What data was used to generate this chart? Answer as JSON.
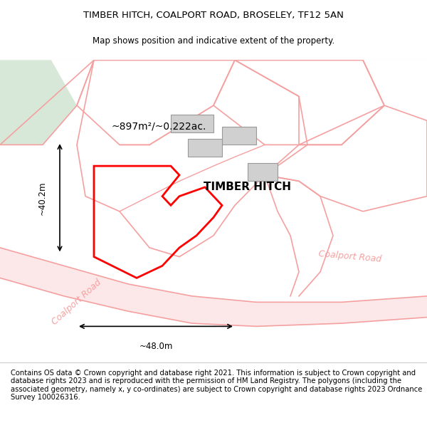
{
  "title_line1": "TIMBER HITCH, COALPORT ROAD, BROSELEY, TF12 5AN",
  "title_line2": "Map shows position and indicative extent of the property.",
  "footer_text": "Contains OS data © Crown copyright and database right 2021. This information is subject to Crown copyright and database rights 2023 and is reproduced with the permission of HM Land Registry. The polygons (including the associated geometry, namely x, y co-ordinates) are subject to Crown copyright and database rights 2023 Ordnance Survey 100026316.",
  "property_label": "TIMBER HITCH",
  "area_label": "~897m²/~0.222ac.",
  "dim_horiz": "~48.0m",
  "dim_vert": "~40.2m",
  "road_label_diag": "Coalport Road",
  "road_label_right": "Coalport Road",
  "background_color": "#ffffff",
  "map_bg": "#ffffff",
  "light_green": "#d8e8d8",
  "plot_outline_color": "#ff0000",
  "neighbor_color": "#f5a0a0",
  "building_color": "#d0d0d0",
  "road_color": "#f5a0a0",
  "title_fontsize": 9.5,
  "subtitle_fontsize": 8.5,
  "footer_fontsize": 7.2,
  "label_fontsize": 11,
  "area_fontsize": 10,
  "dim_fontsize": 8.5,
  "road_fontsize": 9
}
